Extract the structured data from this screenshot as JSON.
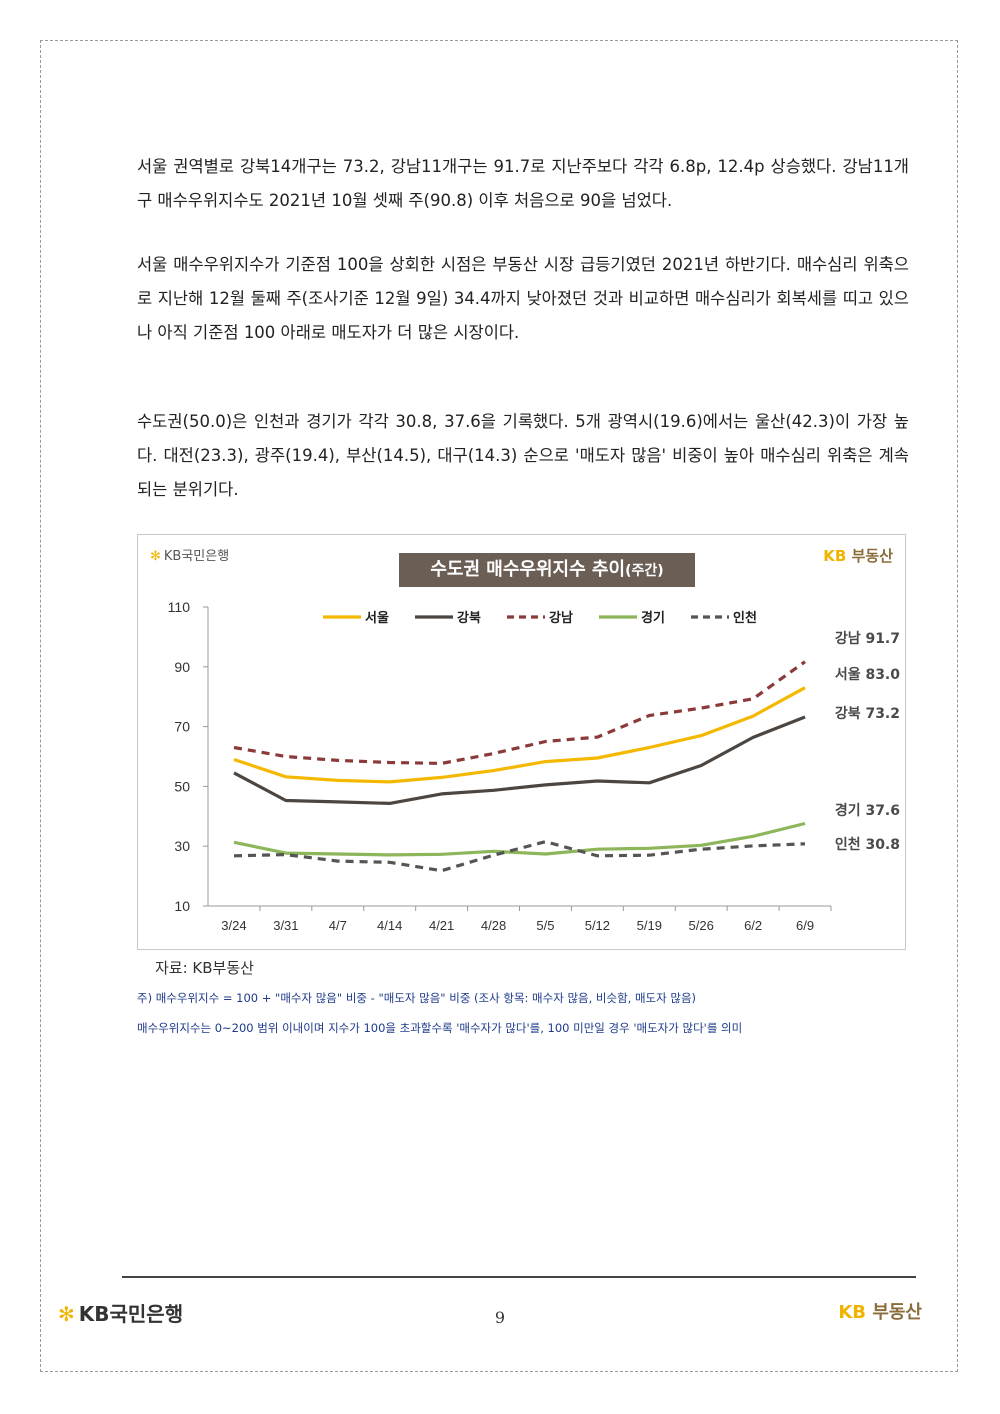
{
  "paragraphs": [
    "서울 권역별로 강북14개구는 73.2, 강남11개구는 91.7로 지난주보다 각각 6.8p, 12.4p 상승했다. 강남11개구 매수우위지수도 2021년 10월 셋째 주(90.8) 이후 처음으로 90을 넘었다.",
    "서울 매수우위지수가 기준점 100을 상회한 시점은 부동산 시장 급등기였던 2021년 하반기다. 매수심리 위축으로 지난해 12월 둘째 주(조사기준 12월 9일) 34.4까지 낮아졌던 것과 비교하면 매수심리가 회복세를 띠고 있으나 아직 기준점 100 아래로 매도자가 더 많은 시장이다.",
    "수도권(50.0)은 인천과 경기가 각각 30.8, 37.6을 기록했다. 5개 광역시(19.6)에서는 울산(42.3)이 가장 높다. 대전(23.3), 광주(19.4), 부산(14.5), 대구(14.3) 순으로 '매도자 많음' 비중이 높아 매수심리 위축은 계속되는 분위기다."
  ],
  "chart_header": {
    "logo_left_star": "✻",
    "logo_left_text": "KB국민은행",
    "logo_right_kb": "KB",
    "logo_right_text": "부동산",
    "title_main": "수도권 매수우위지수 추이",
    "title_small": "(주간)"
  },
  "chart_data": {
    "type": "line",
    "title": "수도권 매수우위지수 추이(주간)",
    "xlabel": "",
    "ylabel": "",
    "ylim": [
      10,
      110
    ],
    "yticks": [
      10,
      30,
      50,
      70,
      90,
      110
    ],
    "grid": false,
    "legend_position": "top",
    "x": [
      "3/24",
      "3/31",
      "4/7",
      "4/14",
      "4/21",
      "4/28",
      "5/5",
      "5/12",
      "5/19",
      "5/26",
      "6/2",
      "6/9"
    ],
    "series": [
      {
        "name": "서울",
        "color": "#f5b800",
        "dash": false,
        "values": [
          59,
          53.2,
          52,
          51.5,
          53,
          55.3,
          58.3,
          59.5,
          63,
          67,
          73.5,
          83.0
        ],
        "end_label": "서울 83.0"
      },
      {
        "name": "강북",
        "color": "#4d4640",
        "dash": false,
        "values": [
          54.5,
          45.3,
          44.8,
          44.3,
          47.5,
          48.7,
          50.5,
          51.8,
          51.2,
          57,
          66.4,
          73.2
        ],
        "end_label": "강북 73.2"
      },
      {
        "name": "강남",
        "color": "#8b3a3a",
        "dash": true,
        "values": [
          63,
          60,
          58.7,
          58,
          57.7,
          61,
          65,
          66.5,
          73.7,
          76.2,
          79.3,
          91.7
        ],
        "end_label": "강남 91.7"
      },
      {
        "name": "경기",
        "color": "#8db55a",
        "dash": false,
        "values": [
          31.3,
          27.7,
          27.4,
          27.1,
          27.3,
          28.3,
          27.4,
          29,
          29.3,
          30.3,
          33.3,
          37.6
        ],
        "end_label": "경기 37.6"
      },
      {
        "name": "인천",
        "color": "#555555",
        "dash": true,
        "values": [
          26.8,
          27.2,
          25,
          24.6,
          21.8,
          27,
          31.5,
          26.8,
          27,
          29,
          30.1,
          30.8
        ],
        "end_label": "인천 30.8"
      }
    ]
  },
  "source_text": "자료: KB부동산",
  "notes": [
    "주) 매수우위지수 = 100 + \"매수자 많음\" 비중 - \"매도자 많음\" 비중  (조사 항목: 매수자 많음, 비슷함, 매도자 많음)",
    "매수우위지수는 0~200 범위 이내이며 지수가 100을 초과할수록 '매수자가 많다'를, 100 미만일 경우 '매도자가 많다'를 의미"
  ],
  "footer": {
    "left_star": "✻",
    "left_text": "KB국민은행",
    "page_number": "9",
    "right_kb": "KB",
    "right_text": "부동산"
  },
  "colors": {
    "title_bg": "#6b5e55",
    "kb_yellow": "#f0b400",
    "kb_brown": "#8a6d3b",
    "note_blue": "#1e3a8a"
  }
}
